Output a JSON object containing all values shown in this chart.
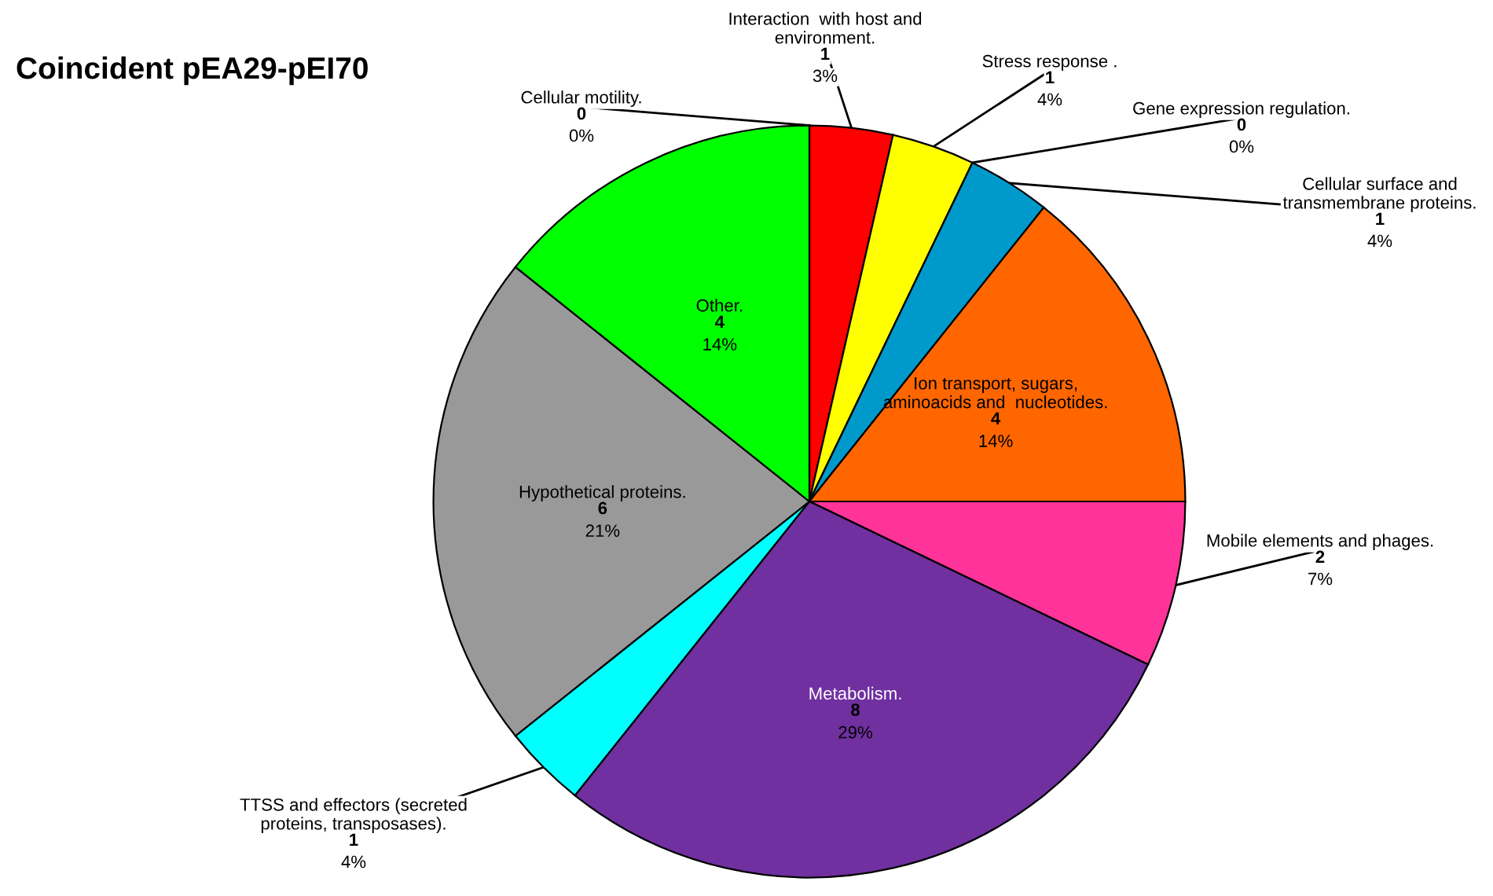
{
  "chart_data": {
    "type": "pie",
    "title": "Coincident pEA29-pEI70",
    "categories": [
      "Cellular motility.",
      "Interaction  with host and environment.",
      "Stress response .",
      "Gene expression regulation.",
      "Cellular surface and transmembrane proteins.",
      "Ion transport, sugars, aminoacids and  nucleotides.",
      "Mobile elements and phages.",
      "Metabolism.",
      "TTSS and effectors (secreted proteins, transposases).",
      "Hypothetical proteins.",
      "Other."
    ],
    "values": [
      0,
      1,
      1,
      0,
      1,
      4,
      2,
      8,
      1,
      6,
      4
    ],
    "value_labels": [
      "0\n0%",
      "1\n3%",
      "1\n4%",
      "0\n0%",
      "1\n4%",
      "4\n14%",
      "2\n7%",
      "8\n29%",
      "1\n4%",
      "6\n21%",
      "4\n14%"
    ],
    "colors": [
      "#4472c4",
      "#ff0000",
      "#ffff00",
      "#00b050",
      "#0099cc",
      "#ff6600",
      "#ff3399",
      "#7030a0",
      "#00ffff",
      "#999999",
      "#00ff00"
    ],
    "legend": false
  }
}
